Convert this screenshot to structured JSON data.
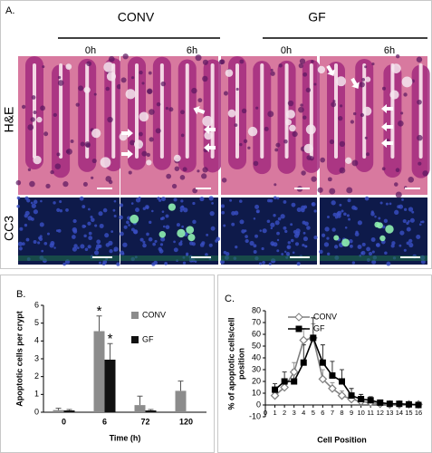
{
  "panel_a": {
    "label": "A.",
    "groups": [
      "CONV",
      "GF"
    ],
    "timepoints": [
      "0h",
      "6h",
      "0h",
      "6h"
    ],
    "rows": [
      "H&E",
      "CC3"
    ]
  },
  "chart_data": [
    {
      "type": "bar",
      "panel_label": "B.",
      "y_label": "Apoptotic cells per crypt",
      "x_label": "Time (h)",
      "categories": [
        "0",
        "6",
        "72",
        "120"
      ],
      "series": [
        {
          "name": "CONV",
          "color": "#8c8c8c",
          "values": [
            0.12,
            4.55,
            0.4,
            1.2
          ],
          "errors": [
            0.1,
            0.85,
            0.5,
            0.55
          ],
          "markers": [
            null,
            "*",
            null,
            null
          ]
        },
        {
          "name": "GF",
          "color": "#111111",
          "values": [
            0.1,
            2.95,
            0.1,
            null
          ],
          "errors": [
            0.05,
            0.9,
            0.05,
            null
          ],
          "markers": [
            null,
            "*",
            null,
            null
          ]
        }
      ],
      "ylim": [
        0,
        6
      ],
      "yticks": [
        0,
        1,
        2,
        3,
        4,
        5,
        6
      ],
      "grid": false
    },
    {
      "type": "line",
      "panel_label": "C.",
      "y_label_lines": [
        "% of apoptotic cells/cell",
        "position"
      ],
      "x_label": "Cell Position",
      "x": [
        1,
        2,
        3,
        4,
        5,
        6,
        7,
        8,
        9,
        10,
        11,
        12,
        13,
        14,
        15,
        16
      ],
      "series": [
        {
          "name": "CONV",
          "color": "#7f7f7f",
          "marker": "diamond",
          "values": [
            8,
            15,
            28,
            55,
            57,
            22,
            14,
            8,
            5,
            3,
            2,
            1,
            0.5,
            0.5,
            0.5,
            0.5
          ],
          "errors": [
            2,
            3,
            8,
            10,
            12,
            8,
            5,
            4,
            3,
            2,
            1,
            1,
            1,
            1,
            1,
            1
          ]
        },
        {
          "name": "GF",
          "color": "#000000",
          "marker": "square",
          "values": [
            13,
            20,
            20,
            36,
            57,
            36,
            25,
            20,
            8,
            5,
            4,
            2,
            1,
            1,
            0.5,
            0
          ],
          "errors": [
            5,
            8,
            10,
            15,
            17,
            15,
            12,
            10,
            6,
            4,
            3,
            2,
            2,
            1,
            1,
            1
          ]
        }
      ],
      "xlim": [
        0,
        16
      ],
      "xticks": [
        0,
        1,
        2,
        3,
        4,
        5,
        6,
        7,
        8,
        9,
        10,
        11,
        12,
        13,
        14,
        15,
        16
      ],
      "ylim": [
        -10,
        80
      ],
      "yticks": [
        -10,
        0,
        10,
        20,
        30,
        40,
        50,
        60,
        70,
        80
      ],
      "grid": false
    }
  ]
}
